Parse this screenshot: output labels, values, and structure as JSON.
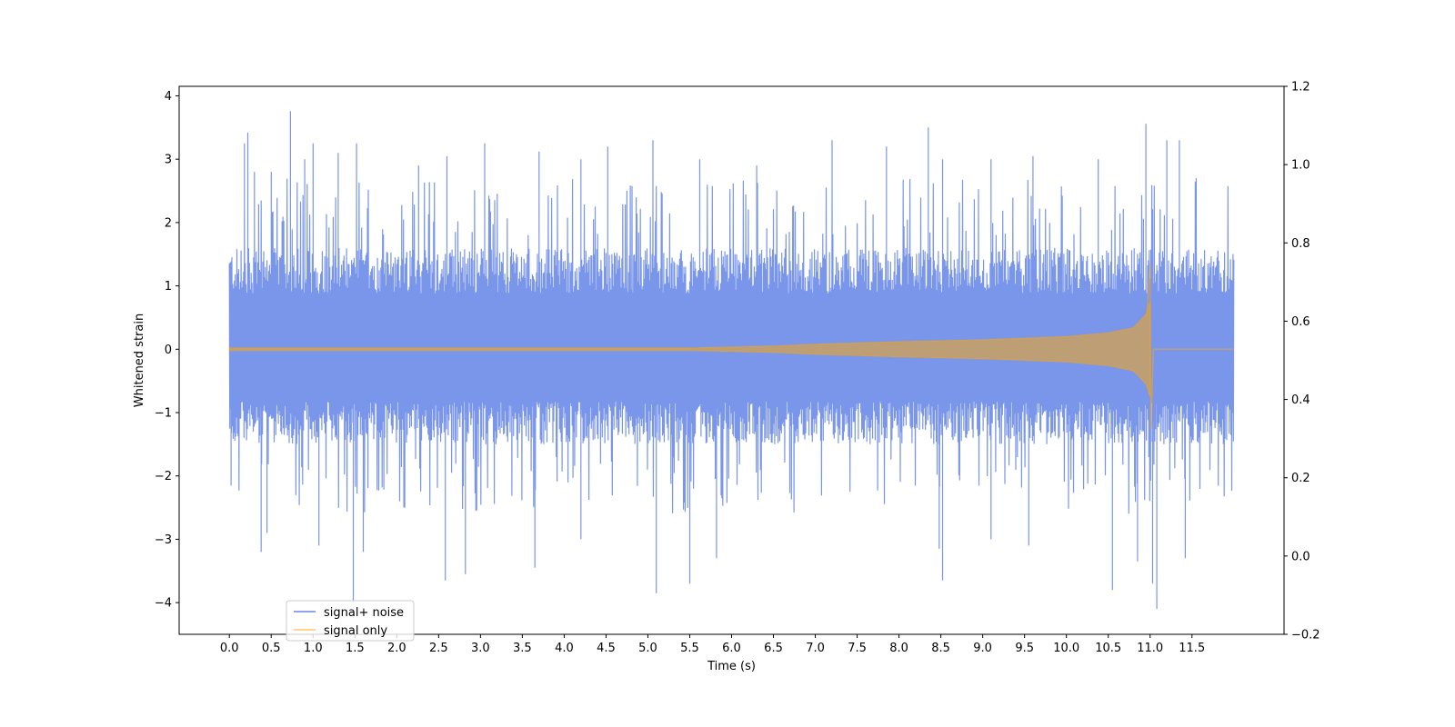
{
  "chart_data": {
    "type": "line",
    "title": "",
    "xlabel": "Time (s)",
    "ylabel": "Whitened strain",
    "y2label": "",
    "xlim": [
      -0.6,
      12.6
    ],
    "ylim": [
      -4.5,
      4.15
    ],
    "y2lim": [
      -0.2,
      1.2
    ],
    "x_ticks": [
      0.0,
      0.5,
      1.0,
      1.5,
      2.0,
      2.5,
      3.0,
      3.5,
      4.0,
      4.5,
      5.0,
      5.5,
      6.0,
      6.5,
      7.0,
      7.5,
      8.0,
      8.5,
      9.0,
      9.5,
      10.0,
      10.5,
      11.0,
      11.5
    ],
    "x_tick_labels": [
      "0.0",
      "0.5",
      "1.0",
      "1.5",
      "2.0",
      "2.5",
      "3.0",
      "3.5",
      "4.0",
      "4.5",
      "5.0",
      "5.5",
      "6.0",
      "6.5",
      "7.0",
      "7.5",
      "8.0",
      "8.5",
      "9.0",
      "9.5",
      "10.0",
      "10.5",
      "11.0",
      "11.5"
    ],
    "y_ticks": [
      -4,
      -3,
      -2,
      -1,
      0,
      1,
      2,
      3,
      4
    ],
    "y_tick_labels": [
      "−4",
      "−3",
      "−2",
      "−1",
      "0",
      "1",
      "2",
      "3",
      "4"
    ],
    "y2_ticks": [
      -0.2,
      0.0,
      0.2,
      0.4,
      0.6,
      0.8,
      1.0,
      1.2
    ],
    "y2_tick_labels": [
      "−0.2",
      "0.0",
      "0.2",
      "0.4",
      "0.6",
      "0.8",
      "1.0",
      "1.2"
    ],
    "grid": false,
    "legend_position": "lower-left",
    "series": [
      {
        "name": "signal+ noise",
        "color": "#4169e1",
        "opacity": 0.7,
        "x_range": [
          0.0,
          12.0
        ],
        "noise_band": [
          -1.5,
          1.6
        ],
        "peaks_up": [
          [
            0.18,
            3.25
          ],
          [
            0.22,
            3.42
          ],
          [
            0.3,
            2.8
          ],
          [
            0.5,
            2.8
          ],
          [
            0.73,
            3.76
          ],
          [
            0.9,
            3.0
          ],
          [
            1.0,
            3.25
          ],
          [
            1.3,
            3.1
          ],
          [
            1.52,
            3.25
          ],
          [
            2.26,
            2.9
          ],
          [
            2.6,
            3.05
          ],
          [
            3.05,
            3.25
          ],
          [
            3.7,
            3.12
          ],
          [
            4.2,
            3.0
          ],
          [
            4.52,
            3.2
          ],
          [
            5.06,
            3.3
          ],
          [
            5.62,
            3.0
          ],
          [
            6.3,
            2.9
          ],
          [
            7.2,
            3.3
          ],
          [
            7.85,
            3.2
          ],
          [
            8.35,
            3.5
          ],
          [
            8.52,
            3.0
          ],
          [
            9.1,
            3.0
          ],
          [
            9.6,
            3.05
          ],
          [
            10.38,
            3.0
          ],
          [
            10.95,
            3.56
          ],
          [
            11.2,
            3.3
          ],
          [
            11.35,
            3.3
          ]
        ],
        "peaks_down": [
          [
            0.02,
            -2.15
          ],
          [
            0.38,
            -3.2
          ],
          [
            0.45,
            -2.9
          ],
          [
            1.07,
            -3.1
          ],
          [
            1.48,
            -4.0
          ],
          [
            1.6,
            -3.2
          ],
          [
            2.58,
            -3.65
          ],
          [
            2.82,
            -3.55
          ],
          [
            3.65,
            -3.45
          ],
          [
            4.2,
            -3.0
          ],
          [
            5.1,
            -3.85
          ],
          [
            5.5,
            -3.7
          ],
          [
            5.82,
            -3.3
          ],
          [
            8.48,
            -3.15
          ],
          [
            8.52,
            -3.65
          ],
          [
            9.1,
            -3.0
          ],
          [
            9.55,
            -3.1
          ],
          [
            10.55,
            -3.8
          ],
          [
            10.85,
            -3.35
          ],
          [
            11.03,
            -3.7
          ],
          [
            11.08,
            -4.1
          ],
          [
            11.42,
            -3.3
          ]
        ]
      },
      {
        "name": "signal only",
        "color": "#ffa500",
        "opacity": 0.5,
        "x_range": [
          0.0,
          12.0
        ],
        "envelope": [
          [
            0.0,
            0.02
          ],
          [
            5.5,
            0.02
          ],
          [
            6.5,
            0.05
          ],
          [
            7.0,
            0.08
          ],
          [
            8.0,
            0.12
          ],
          [
            9.0,
            0.15
          ],
          [
            10.0,
            0.2
          ],
          [
            10.5,
            0.26
          ],
          [
            10.8,
            0.34
          ],
          [
            10.95,
            0.55
          ],
          [
            11.0,
            0.75
          ],
          [
            11.01,
            0.0
          ],
          [
            12.0,
            0.0
          ]
        ],
        "merger_peak": [
          11.0,
          1.35
        ],
        "merger_trough": [
          11.0,
          -1.25
        ]
      }
    ]
  }
}
